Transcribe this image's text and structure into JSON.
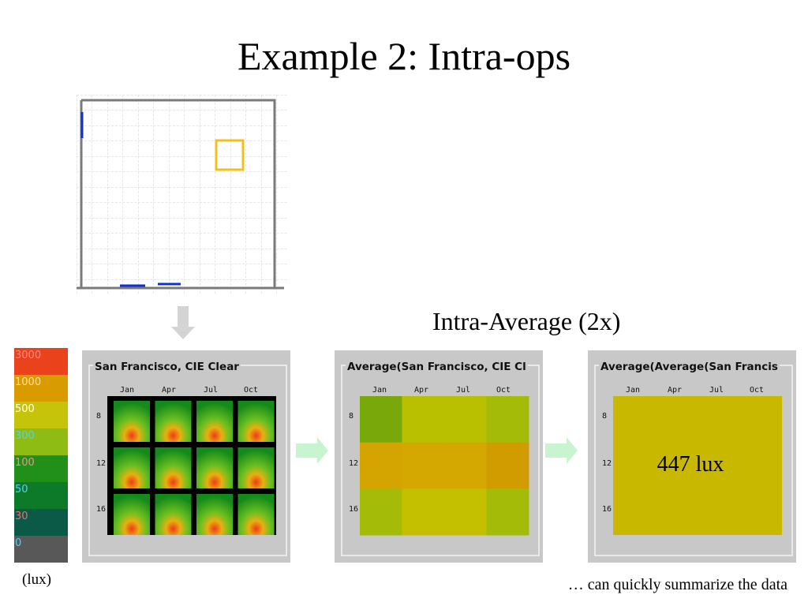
{
  "title": "Example 2: Intra-ops",
  "legend": {
    "labels": [
      "3000",
      "1000",
      "500",
      "300",
      "100",
      "50",
      "30",
      "0"
    ],
    "unit": "(lux)"
  },
  "annotation": "Intra-Average (2x)",
  "panels": [
    {
      "title": "San Francisco, CIE Clear",
      "months": [
        "Jan",
        "Apr",
        "Jul",
        "Oct"
      ],
      "hours": [
        "8",
        "12",
        "16"
      ]
    },
    {
      "title": "Average(San Francisco, CIE Cl",
      "months": [
        "Jan",
        "Apr",
        "Jul",
        "Oct"
      ],
      "hours": [
        "8",
        "12",
        "16"
      ]
    },
    {
      "title": "Average(Average(San Francis",
      "months": [
        "Jan",
        "Apr",
        "Jul",
        "Oct"
      ],
      "hours": [
        "8",
        "12",
        "16"
      ],
      "value_label": "447 lux"
    }
  ],
  "caption": "… can quickly summarize the data"
}
